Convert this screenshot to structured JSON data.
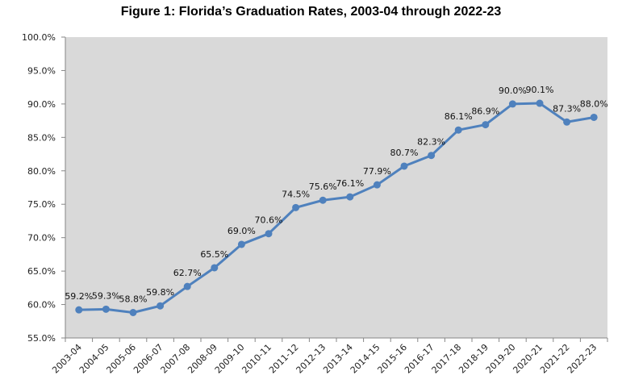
{
  "chart_data": {
    "type": "line",
    "title": "Figure 1: Florida’s Graduation Rates, 2003-04 through 2022-23",
    "xlabel": "",
    "ylabel": "",
    "ylim": [
      55,
      100
    ],
    "grid": false,
    "legend": "none",
    "y_ticks": [
      "55.0%",
      "60.0%",
      "65.0%",
      "70.0%",
      "75.0%",
      "80.0%",
      "85.0%",
      "90.0%",
      "95.0%",
      "100.0%"
    ],
    "y_tick_values": [
      55,
      60,
      65,
      70,
      75,
      80,
      85,
      90,
      95,
      100
    ],
    "categories": [
      "2003-04",
      "2004-05",
      "2005-06",
      "2006-07",
      "2007-08",
      "2008-09",
      "2009-10",
      "2010-11",
      "2011-12",
      "2012-13",
      "2013-14",
      "2014-15",
      "2015-16",
      "2016-17",
      "2017-18",
      "2018-19",
      "2019-20",
      "2020-21",
      "2021-22",
      "2022-23"
    ],
    "series": [
      {
        "name": "Graduation Rate",
        "color": "#4F81BD",
        "values": [
          59.2,
          59.3,
          58.8,
          59.8,
          62.7,
          65.5,
          69.0,
          70.6,
          74.5,
          75.6,
          76.1,
          77.9,
          80.7,
          82.3,
          86.1,
          86.9,
          90.0,
          90.1,
          87.3,
          88.0
        ],
        "labels": [
          "59.2%",
          "59.3%",
          "58.8%",
          "59.8%",
          "62.7%",
          "65.5%",
          "69.0%",
          "70.6%",
          "74.5%",
          "75.6%",
          "76.1%",
          "77.9%",
          "80.7%",
          "82.3%",
          "86.1%",
          "86.9%",
          "90.0%",
          "90.1%",
          "87.3%",
          "88.0%"
        ]
      }
    ],
    "plot_background": "#D9D9D9"
  }
}
